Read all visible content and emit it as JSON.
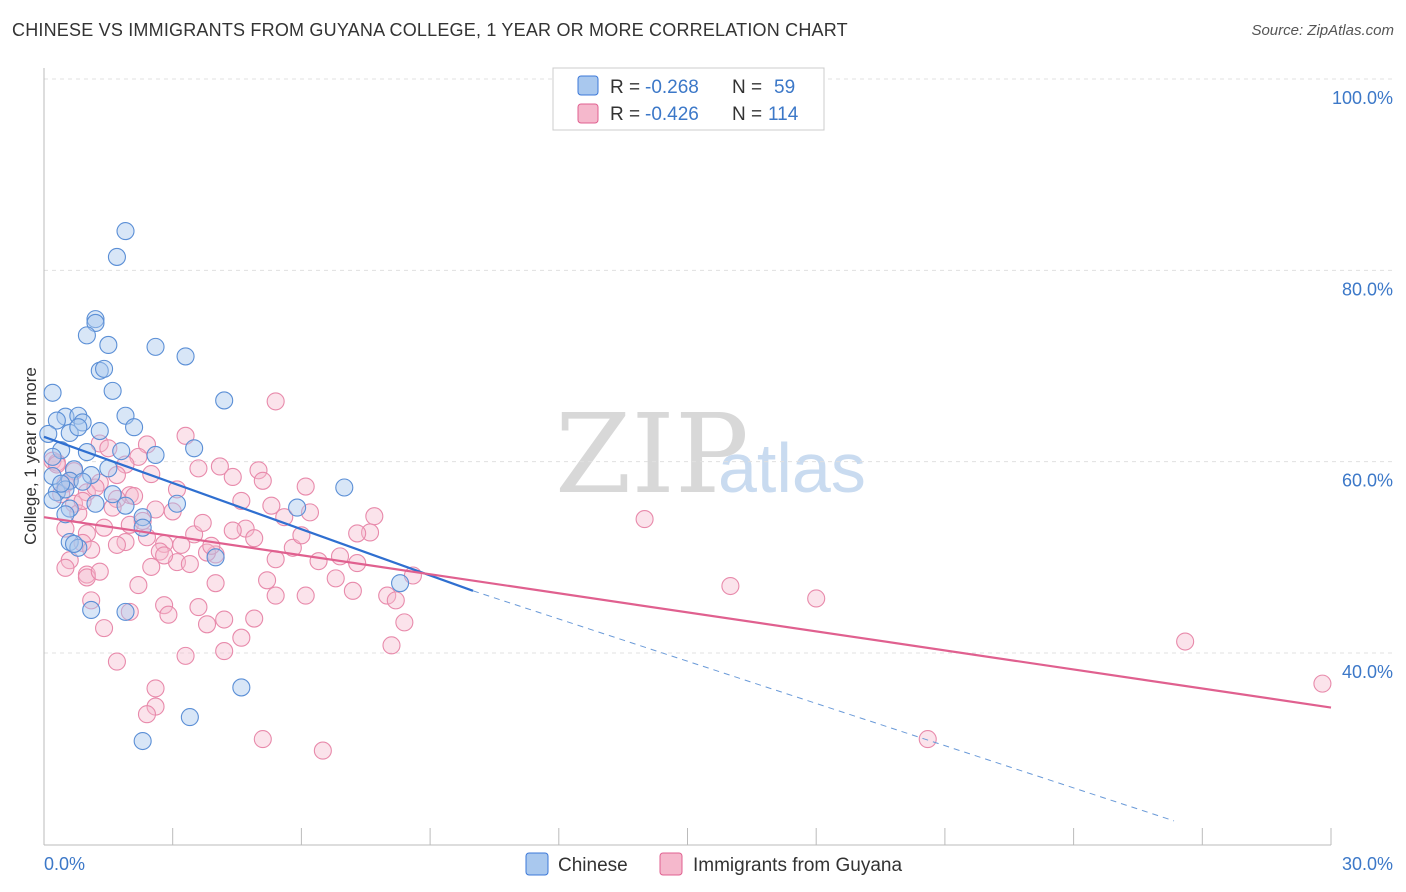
{
  "title": "CHINESE VS IMMIGRANTS FROM GUYANA COLLEGE, 1 YEAR OR MORE CORRELATION CHART",
  "source": "Source: ZipAtlas.com",
  "watermark": {
    "zip": "ZIP",
    "atlas": "atlas"
  },
  "legend": {
    "rows": [
      {
        "r_label": "R =",
        "r_value": "-0.268",
        "n_label": "N =",
        "n_value": "59"
      },
      {
        "r_label": "R =",
        "r_value": "-0.426",
        "n_label": "N =",
        "n_value": "114"
      }
    ]
  },
  "bottom_legend": {
    "series1": "Chinese",
    "series2": "Immigrants from Guyana"
  },
  "colors": {
    "blue": "#3c78d8",
    "blue_fill": "#a9c8ee",
    "pink": "#e06090",
    "pink_fill": "#f5b8cc",
    "axis_text": "#3c78c8"
  },
  "chart_data": {
    "type": "scatter",
    "title": "CHINESE VS IMMIGRANTS FROM GUYANA COLLEGE, 1 YEAR OR MORE CORRELATION CHART",
    "xlabel": "",
    "ylabel": "College, 1 year or more",
    "xlim": [
      0,
      30
    ],
    "ylim": [
      20,
      102
    ],
    "y_ticks": [
      40,
      60,
      80,
      100
    ],
    "y_tick_labels": [
      "40.0%",
      "60.0%",
      "80.0%",
      "100.0%"
    ],
    "x_tick_labels": [
      "0.0%",
      "30.0%"
    ],
    "series": [
      {
        "name": "Chinese",
        "r": -0.268,
        "n": 59,
        "trend": {
          "x0": 0.0,
          "y0": 62.6,
          "x1": 10.0,
          "y1": 46.5,
          "dash_x1": 30.0,
          "dash_y1": 14.3
        },
        "points": [
          [
            1.9,
            84.1
          ],
          [
            1.7,
            81.4
          ],
          [
            1.2,
            74.9
          ],
          [
            1.2,
            74.5
          ],
          [
            1.0,
            73.2
          ],
          [
            1.5,
            72.2
          ],
          [
            2.6,
            72.0
          ],
          [
            3.3,
            71.0
          ],
          [
            1.3,
            69.5
          ],
          [
            1.4,
            69.7
          ],
          [
            1.6,
            67.4
          ],
          [
            0.2,
            67.2
          ],
          [
            4.2,
            66.4
          ],
          [
            0.5,
            64.7
          ],
          [
            0.8,
            64.8
          ],
          [
            1.9,
            64.8
          ],
          [
            0.9,
            64.1
          ],
          [
            0.3,
            64.3
          ],
          [
            1.3,
            63.2
          ],
          [
            0.6,
            63.0
          ],
          [
            2.1,
            63.6
          ],
          [
            0.1,
            62.9
          ],
          [
            0.8,
            63.6
          ],
          [
            1.8,
            61.1
          ],
          [
            0.4,
            61.2
          ],
          [
            1.0,
            61.0
          ],
          [
            2.6,
            60.7
          ],
          [
            3.5,
            61.4
          ],
          [
            0.7,
            59.2
          ],
          [
            1.5,
            59.3
          ],
          [
            1.1,
            58.6
          ],
          [
            0.2,
            58.5
          ],
          [
            0.6,
            58.0
          ],
          [
            0.9,
            57.9
          ],
          [
            7.0,
            57.3
          ],
          [
            0.3,
            56.8
          ],
          [
            0.5,
            57.1
          ],
          [
            0.2,
            56.0
          ],
          [
            3.1,
            55.6
          ],
          [
            1.2,
            55.6
          ],
          [
            5.9,
            55.2
          ],
          [
            1.9,
            55.4
          ],
          [
            0.6,
            55.1
          ],
          [
            0.5,
            54.5
          ],
          [
            2.3,
            54.2
          ],
          [
            2.3,
            53.1
          ],
          [
            0.6,
            51.6
          ],
          [
            0.8,
            51.0
          ],
          [
            0.7,
            51.4
          ],
          [
            4.0,
            50.0
          ],
          [
            8.3,
            47.3
          ],
          [
            1.1,
            44.5
          ],
          [
            1.9,
            44.3
          ],
          [
            4.6,
            36.4
          ],
          [
            3.4,
            33.3
          ],
          [
            2.3,
            30.8
          ],
          [
            0.2,
            60.5
          ],
          [
            0.4,
            57.7
          ],
          [
            1.6,
            56.6
          ]
        ]
      },
      {
        "name": "Immigrants from Guyana",
        "r": -0.426,
        "n": 114,
        "trend": {
          "x0": 0.0,
          "y0": 54.2,
          "x1": 30.0,
          "y1": 34.3
        },
        "points": [
          [
            5.4,
            66.3
          ],
          [
            3.3,
            62.7
          ],
          [
            2.4,
            61.8
          ],
          [
            1.3,
            61.9
          ],
          [
            1.5,
            61.4
          ],
          [
            2.2,
            60.5
          ],
          [
            0.2,
            60.1
          ],
          [
            0.3,
            59.9
          ],
          [
            1.9,
            59.7
          ],
          [
            4.1,
            59.5
          ],
          [
            3.6,
            59.3
          ],
          [
            5.0,
            59.1
          ],
          [
            0.7,
            59.0
          ],
          [
            1.7,
            58.6
          ],
          [
            2.5,
            58.7
          ],
          [
            4.4,
            58.4
          ],
          [
            5.1,
            58.0
          ],
          [
            0.5,
            57.7
          ],
          [
            1.3,
            57.8
          ],
          [
            6.1,
            57.4
          ],
          [
            3.1,
            57.1
          ],
          [
            0.4,
            56.6
          ],
          [
            1.0,
            56.8
          ],
          [
            2.0,
            56.5
          ],
          [
            1.7,
            56.1
          ],
          [
            4.6,
            55.9
          ],
          [
            0.7,
            55.6
          ],
          [
            1.6,
            55.2
          ],
          [
            5.3,
            55.4
          ],
          [
            2.6,
            55.0
          ],
          [
            0.8,
            54.6
          ],
          [
            3.0,
            54.8
          ],
          [
            5.6,
            54.2
          ],
          [
            6.2,
            54.7
          ],
          [
            7.7,
            54.3
          ],
          [
            14.0,
            54.0
          ],
          [
            0.5,
            53.0
          ],
          [
            1.4,
            53.1
          ],
          [
            2.0,
            53.4
          ],
          [
            4.7,
            53.0
          ],
          [
            7.6,
            52.6
          ],
          [
            1.0,
            52.5
          ],
          [
            2.4,
            52.1
          ],
          [
            3.5,
            52.4
          ],
          [
            4.9,
            52.0
          ],
          [
            0.9,
            51.5
          ],
          [
            1.9,
            51.6
          ],
          [
            2.8,
            51.4
          ],
          [
            3.2,
            51.3
          ],
          [
            5.8,
            51.0
          ],
          [
            1.1,
            50.8
          ],
          [
            2.7,
            50.6
          ],
          [
            4.0,
            50.3
          ],
          [
            3.8,
            50.5
          ],
          [
            5.4,
            49.8
          ],
          [
            6.4,
            49.6
          ],
          [
            7.3,
            49.4
          ],
          [
            0.6,
            49.7
          ],
          [
            3.1,
            49.5
          ],
          [
            6.8,
            47.8
          ],
          [
            8.6,
            48.1
          ],
          [
            1.0,
            48.2
          ],
          [
            1.0,
            47.9
          ],
          [
            4.0,
            47.3
          ],
          [
            16.0,
            47.0
          ],
          [
            7.2,
            46.5
          ],
          [
            8.0,
            46.0
          ],
          [
            18.0,
            45.7
          ],
          [
            5.4,
            46.0
          ],
          [
            1.1,
            45.5
          ],
          [
            2.8,
            45.0
          ],
          [
            3.6,
            44.8
          ],
          [
            2.0,
            44.3
          ],
          [
            8.2,
            45.5
          ],
          [
            4.2,
            43.5
          ],
          [
            3.8,
            43.0
          ],
          [
            8.4,
            43.2
          ],
          [
            1.4,
            42.6
          ],
          [
            4.6,
            41.6
          ],
          [
            8.1,
            40.8
          ],
          [
            4.2,
            40.2
          ],
          [
            3.3,
            39.7
          ],
          [
            1.7,
            39.1
          ],
          [
            26.6,
            41.2
          ],
          [
            29.8,
            36.8
          ],
          [
            2.6,
            36.3
          ],
          [
            2.6,
            34.4
          ],
          [
            2.4,
            33.6
          ],
          [
            20.6,
            31.0
          ],
          [
            5.1,
            31.0
          ],
          [
            6.5,
            29.8
          ],
          [
            0.3,
            59.7
          ],
          [
            0.6,
            58.0
          ],
          [
            1.2,
            57.3
          ],
          [
            2.1,
            56.4
          ],
          [
            0.9,
            55.9
          ],
          [
            2.3,
            53.8
          ],
          [
            3.7,
            53.6
          ],
          [
            4.4,
            52.8
          ],
          [
            6.0,
            52.3
          ],
          [
            1.7,
            51.3
          ],
          [
            2.8,
            50.2
          ],
          [
            3.4,
            49.3
          ],
          [
            0.5,
            48.9
          ],
          [
            1.3,
            48.5
          ],
          [
            5.2,
            47.6
          ],
          [
            2.2,
            47.1
          ],
          [
            6.1,
            46.0
          ],
          [
            2.9,
            44.0
          ],
          [
            4.9,
            43.6
          ],
          [
            7.3,
            52.5
          ],
          [
            3.9,
            51.2
          ],
          [
            6.9,
            50.1
          ],
          [
            2.5,
            49.0
          ]
        ]
      }
    ]
  }
}
